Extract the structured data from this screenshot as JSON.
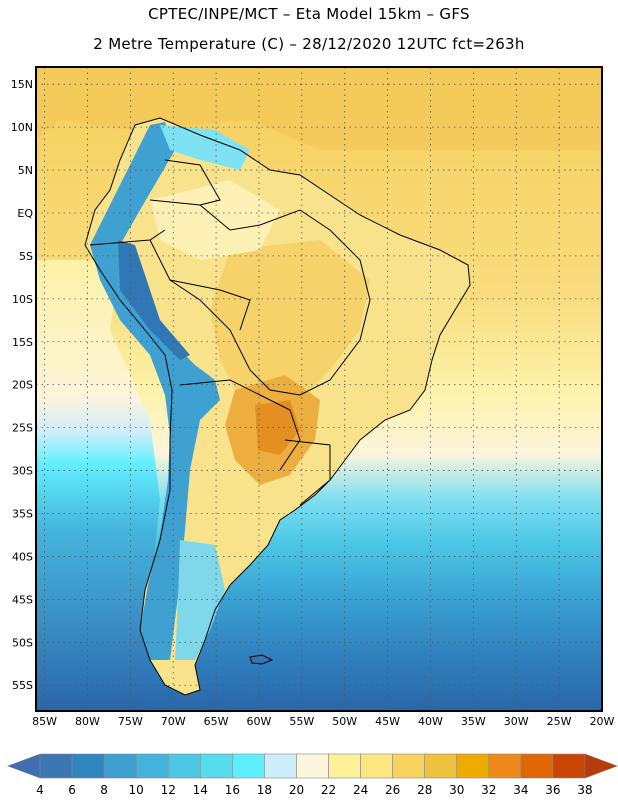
{
  "header": {
    "title_line1": "CPTEC/INPE/MCT –  Eta Model 15km – GFS",
    "title_line2": "2 Metre Temperature (C) – 28/12/2020 12UTC fct=263h"
  },
  "map": {
    "lat_range": [
      -58,
      17
    ],
    "lon_range": [
      -86,
      -20
    ],
    "lat_labels": [
      {
        "value": 15,
        "text": "15N"
      },
      {
        "value": 10,
        "text": "10N"
      },
      {
        "value": 5,
        "text": "5N"
      },
      {
        "value": 0,
        "text": "EQ"
      },
      {
        "value": -5,
        "text": "5S"
      },
      {
        "value": -10,
        "text": "10S"
      },
      {
        "value": -15,
        "text": "15S"
      },
      {
        "value": -20,
        "text": "20S"
      },
      {
        "value": -25,
        "text": "25S"
      },
      {
        "value": -30,
        "text": "30S"
      },
      {
        "value": -35,
        "text": "35S"
      },
      {
        "value": -40,
        "text": "40S"
      },
      {
        "value": -45,
        "text": "45S"
      },
      {
        "value": -50,
        "text": "50S"
      },
      {
        "value": -55,
        "text": "55S"
      }
    ],
    "lon_labels": [
      {
        "value": -85,
        "text": "85W"
      },
      {
        "value": -80,
        "text": "80W"
      },
      {
        "value": -75,
        "text": "75W"
      },
      {
        "value": -70,
        "text": "70W"
      },
      {
        "value": -65,
        "text": "65W"
      },
      {
        "value": -60,
        "text": "60W"
      },
      {
        "value": -55,
        "text": "55W"
      },
      {
        "value": -50,
        "text": "50W"
      },
      {
        "value": -45,
        "text": "45W"
      },
      {
        "value": -40,
        "text": "40W"
      },
      {
        "value": -35,
        "text": "35W"
      },
      {
        "value": -30,
        "text": "30W"
      },
      {
        "value": -25,
        "text": "25W"
      },
      {
        "value": -20,
        "text": "20W"
      }
    ],
    "gridlines": "dotted",
    "variable": "2 metre temperature"
  },
  "colorbar": {
    "labels": [
      "4",
      "6",
      "8",
      "10",
      "12",
      "14",
      "16",
      "18",
      "20",
      "22",
      "24",
      "26",
      "28",
      "30",
      "32",
      "34",
      "36",
      "38"
    ],
    "colors": [
      "#3b78b3",
      "#2f86be",
      "#3f9fd0",
      "#44b3dc",
      "#4dc8e4",
      "#55dced",
      "#5defff",
      "#cdeefc",
      "#fdf5dc",
      "#fdf29a",
      "#fde680",
      "#f7d35e",
      "#efc23d",
      "#f0ab00",
      "#ee8a1a",
      "#e06606",
      "#c84504"
    ],
    "low_color": "#3f6fb0",
    "high_color": "#ba3b0a"
  }
}
